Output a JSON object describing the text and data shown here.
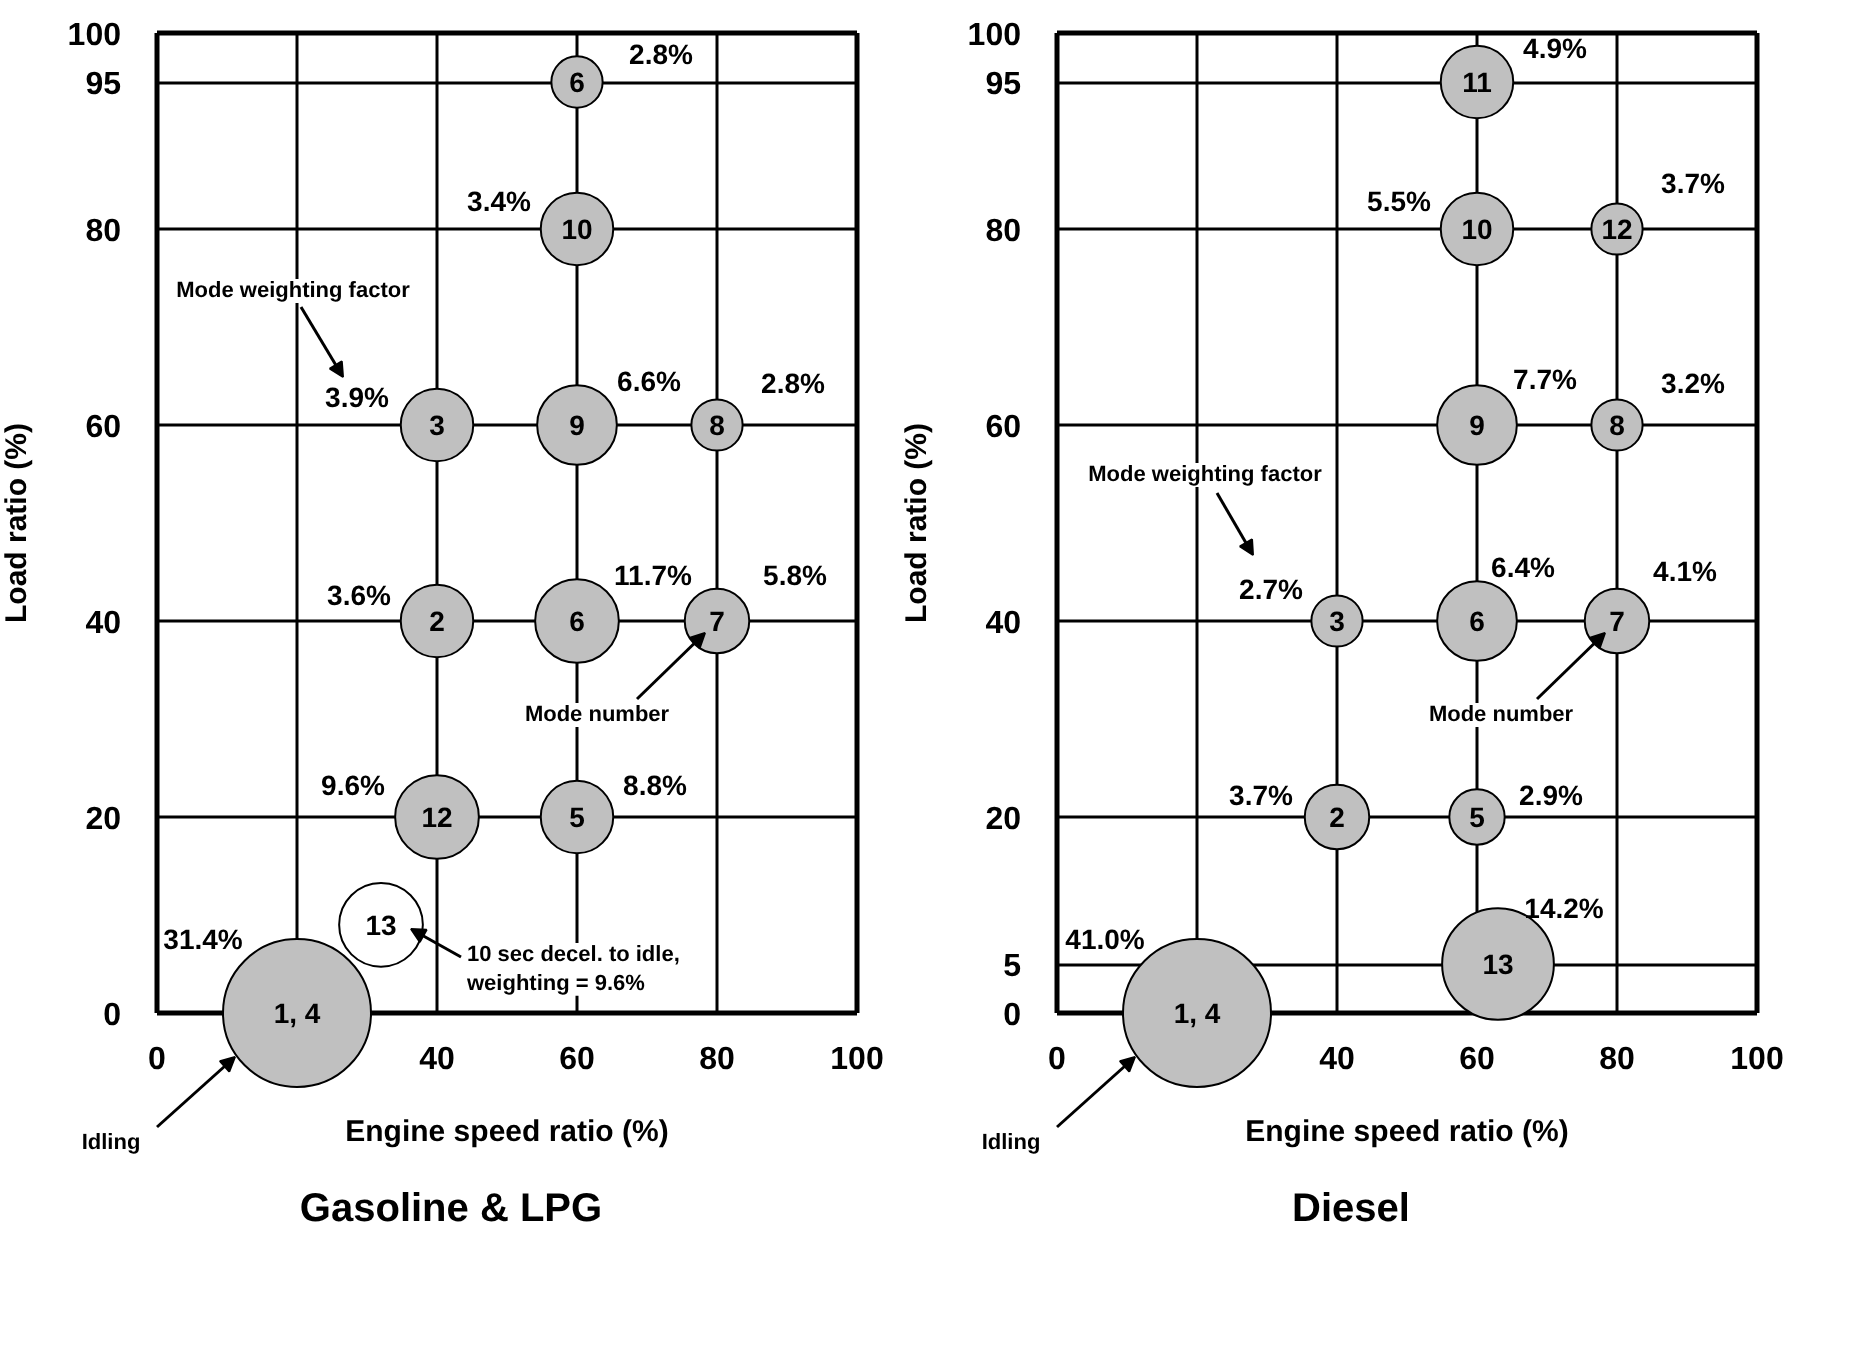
{
  "chart_data": [
    {
      "type": "bubble",
      "title": "Gasoline & LPG",
      "xlabel": "Engine speed ratio (%)",
      "ylabel": "Load ratio (%)",
      "x": [
        60,
        60,
        40,
        60,
        80,
        40,
        60,
        80,
        40,
        60,
        32,
        20
      ],
      "values": [
        95,
        80,
        60,
        60,
        60,
        40,
        40,
        40,
        20,
        20,
        9,
        0
      ],
      "sizes": [
        0.12,
        0.24,
        0.24,
        0.29,
        0.12,
        0.24,
        0.32,
        0.19,
        0.32,
        0.24,
        0.32,
        1
      ],
      "colors": [
        "#c0c0c0",
        "#c0c0c0",
        "#c0c0c0",
        "#c0c0c0",
        "#c0c0c0",
        "#c0c0c0",
        "#c0c0c0",
        "#c0c0c0",
        "#c0c0c0",
        "#c0c0c0",
        "#ffffff",
        "#c0c0c0"
      ],
      "xlim": [
        0,
        100
      ],
      "ylim": [
        0,
        100
      ],
      "xticks": [
        0,
        {
          "value": 20,
          "label": null
        },
        40,
        60,
        80,
        100
      ],
      "yticks": [
        0,
        20,
        40,
        60,
        80,
        95,
        100
      ],
      "grid": true,
      "marker": "circle",
      "annotations": [
        {
          "text": "6",
          "x": 60,
          "y": 95
        },
        {
          "text": "10",
          "x": 60,
          "y": 80
        },
        {
          "text": "3",
          "x": 40,
          "y": 60
        },
        {
          "text": "9",
          "x": 60,
          "y": 60
        },
        {
          "text": "8",
          "x": 80,
          "y": 60
        },
        {
          "text": "2",
          "x": 40,
          "y": 40
        },
        {
          "text": "6",
          "x": 60,
          "y": 40
        },
        {
          "text": "7",
          "x": 80,
          "y": 40
        },
        {
          "text": "12",
          "x": 40,
          "y": 20
        },
        {
          "text": "5",
          "x": 60,
          "y": 20
        },
        {
          "text": "13",
          "x": 32,
          "y": 9
        },
        {
          "text": "1, 4",
          "x": 20,
          "y": 0
        },
        {
          "text": "2.8%",
          "x": 60,
          "y": 95
        },
        {
          "text": "3.4%",
          "x": 60,
          "y": 80
        },
        {
          "text": "3.9%",
          "x": 40,
          "y": 60
        },
        {
          "text": "6.6%",
          "x": 60,
          "y": 60
        },
        {
          "text": "2.8%",
          "x": 80,
          "y": 60
        },
        {
          "text": "3.6%",
          "x": 40,
          "y": 40
        },
        {
          "text": "11.7%",
          "x": 60,
          "y": 40
        },
        {
          "text": "5.8%",
          "x": 80,
          "y": 40
        },
        {
          "text": "9.6%",
          "x": 40,
          "y": 20
        },
        {
          "text": "8.8%",
          "x": 60,
          "y": 20
        },
        {
          "text": "31.4%",
          "x": 20,
          "y": 0
        },
        "Mode weighting factor",
        {
          "text": "Mode number",
          "x": 80,
          "y": 40
        },
        "10 sec decel. to idle,\nweighting = 9.6%",
        "Idling"
      ]
    },
    {
      "type": "bubble",
      "title": "Diesel",
      "xlabel": "Engine speed ratio (%)",
      "ylabel": "Load ratio (%)",
      "x": [
        60,
        60,
        80,
        60,
        80,
        40,
        60,
        80,
        40,
        60,
        63,
        20
      ],
      "values": [
        95,
        80,
        80,
        60,
        60,
        40,
        40,
        40,
        20,
        20,
        5,
        0
      ],
      "sizes": [
        0.24,
        0.24,
        0.12,
        0.29,
        0.12,
        0.12,
        0.29,
        0.19,
        0.19,
        0.14,
        0.57,
        1
      ],
      "colors": [
        "#c0c0c0",
        "#c0c0c0",
        "#c0c0c0",
        "#c0c0c0",
        "#c0c0c0",
        "#c0c0c0",
        "#c0c0c0",
        "#c0c0c0",
        "#c0c0c0",
        "#c0c0c0",
        "#c0c0c0",
        "#c0c0c0"
      ],
      "xlim": [
        0,
        100
      ],
      "ylim": [
        0,
        100
      ],
      "xticks": [
        0,
        {
          "value": 20,
          "label": null
        },
        40,
        60,
        80,
        100
      ],
      "yticks": [
        0,
        5,
        20,
        40,
        60,
        80,
        95,
        100
      ],
      "grid": true,
      "marker": "circle",
      "annotations": [
        {
          "text": "11",
          "x": 60,
          "y": 95
        },
        {
          "text": "10",
          "x": 60,
          "y": 80
        },
        {
          "text": "12",
          "x": 80,
          "y": 80
        },
        {
          "text": "9",
          "x": 60,
          "y": 60
        },
        {
          "text": "8",
          "x": 80,
          "y": 60
        },
        {
          "text": "3",
          "x": 40,
          "y": 40
        },
        {
          "text": "6",
          "x": 60,
          "y": 40
        },
        {
          "text": "7",
          "x": 80,
          "y": 40
        },
        {
          "text": "2",
          "x": 40,
          "y": 20
        },
        {
          "text": "5",
          "x": 60,
          "y": 20
        },
        {
          "text": "13",
          "x": 63,
          "y": 5
        },
        {
          "text": "1, 4",
          "x": 20,
          "y": 0
        },
        {
          "text": "4.9%",
          "x": 60,
          "y": 95
        },
        {
          "text": "5.5%",
          "x": 60,
          "y": 80
        },
        {
          "text": "3.7%",
          "x": 80,
          "y": 80
        },
        {
          "text": "7.7%",
          "x": 60,
          "y": 60
        },
        {
          "text": "3.2%",
          "x": 80,
          "y": 60
        },
        {
          "text": "2.7%",
          "x": 40,
          "y": 40
        },
        {
          "text": "6.4%",
          "x": 60,
          "y": 40
        },
        {
          "text": "4.1%",
          "x": 80,
          "y": 40
        },
        {
          "text": "3.7%",
          "x": 40,
          "y": 20
        },
        {
          "text": "2.9%",
          "x": 60,
          "y": 20
        },
        {
          "text": "14.2%",
          "x": 63,
          "y": 5
        },
        {
          "text": "41.0%",
          "x": 20,
          "y": 0
        },
        "Mode weighting factor",
        {
          "text": "Mode number",
          "x": 80,
          "y": 40
        },
        "Idling"
      ]
    }
  ]
}
